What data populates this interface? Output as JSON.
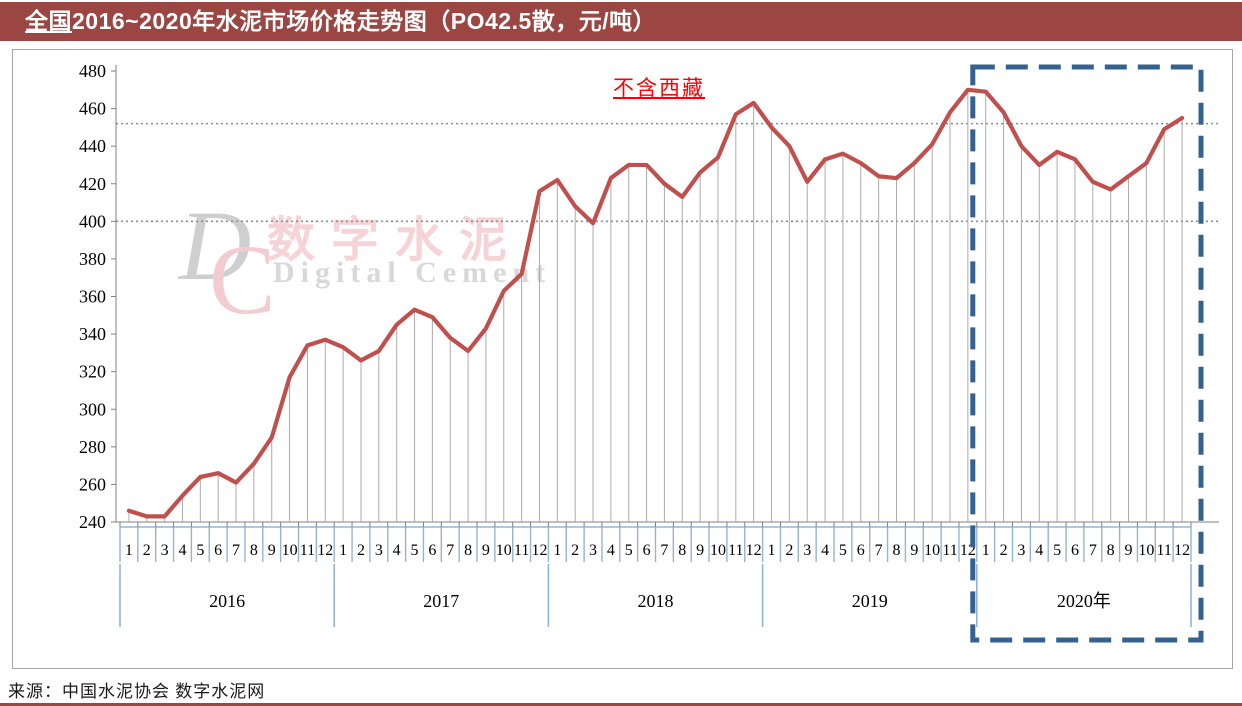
{
  "title": {
    "prefix": "全国",
    "rest": "2016~2020年水泥市场价格走势图（PO42.5散，元/吨）"
  },
  "annotation": "不含西藏",
  "source": "来源：中国水泥协会  数字水泥网",
  "watermark": {
    "d": "D",
    "c": "C",
    "cn": "数字水泥",
    "en": "Digital Cement"
  },
  "colors": {
    "title_bar": "#9B4642",
    "line": "#C0504D",
    "drop_line": "#ABABAB",
    "cell_border": "#95B3D7",
    "dashed_box": "#35618E",
    "reference_dotted": "#8C8C8C",
    "axis": "#808080",
    "annotation_red": "#FF0000"
  },
  "chart_data": {
    "type": "line",
    "title": "全国2016~2020年水泥市场价格走势图（PO42.5散，元/吨）",
    "ylabel": "元/吨",
    "ylim": [
      240,
      480
    ],
    "yticks": [
      480,
      460,
      440,
      420,
      400,
      380,
      360,
      340,
      320,
      300,
      280,
      260,
      240
    ],
    "reference_lines": [
      452,
      400
    ],
    "grid": "off",
    "legend": "none",
    "month_labels": [
      "1",
      "2",
      "3",
      "4",
      "5",
      "6",
      "7",
      "8",
      "9",
      "10",
      "11",
      "12"
    ],
    "years": [
      {
        "label": "2016",
        "values": [
          246,
          243,
          243,
          254,
          264,
          266,
          261,
          271,
          285,
          317,
          334,
          337
        ]
      },
      {
        "label": "2017",
        "values": [
          333,
          326,
          331,
          345,
          353,
          349,
          338,
          331,
          343,
          363,
          372,
          416
        ]
      },
      {
        "label": "2018",
        "values": [
          422,
          408,
          399,
          423,
          430,
          430,
          420,
          413,
          426,
          434,
          457,
          463
        ]
      },
      {
        "label": "2019",
        "values": [
          450,
          440,
          421,
          433,
          436,
          431,
          424,
          423,
          431,
          441,
          458,
          470
        ]
      },
      {
        "label": "2020年",
        "values": [
          469,
          458,
          440,
          430,
          437,
          433,
          421,
          417,
          424,
          431,
          449,
          455
        ]
      }
    ],
    "highlight_box": {
      "year": "2020年",
      "style": "dashed"
    }
  }
}
